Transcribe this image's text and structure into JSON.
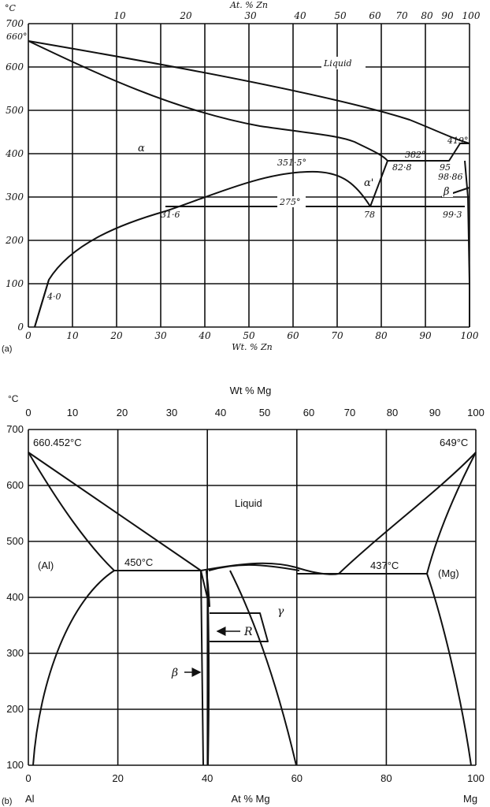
{
  "panel_a": {
    "label": "(a)",
    "y_unit": "°C",
    "top_axis_label": "At. % Zn",
    "bottom_axis_label": "Wt. % Zn",
    "y_ticks": [
      "0",
      "100",
      "200",
      "300",
      "400",
      "500",
      "600",
      "700"
    ],
    "top_ticks": [
      "10",
      "20",
      "30",
      "40",
      "50",
      "60",
      "70",
      "80",
      "90",
      "100"
    ],
    "bottom_ticks": [
      "0",
      "10",
      "20",
      "30",
      "40",
      "50",
      "60",
      "70",
      "80",
      "90",
      "100"
    ],
    "annotations": {
      "t660": "660°",
      "liquid": "Liquid",
      "alpha": "α",
      "alpha_prime": "α'",
      "beta": "β",
      "t419": "419°",
      "t382": "382°",
      "c828": "82·8",
      "c95": "95",
      "c9886": "98·86",
      "t3515": "351·5°",
      "t275": "275°",
      "c316": "31·6",
      "c78": "78",
      "c993": "99·3",
      "c40": "4·0"
    }
  },
  "panel_b": {
    "label": "(b)",
    "y_unit": "°C",
    "top_axis_label": "Wt % Mg",
    "bottom_axis_label": "At % Mg",
    "left_element": "Al",
    "right_element": "Mg",
    "y_ticks": [
      "100",
      "200",
      "300",
      "400",
      "500",
      "600",
      "700"
    ],
    "top_ticks": [
      "0",
      "10",
      "20",
      "30",
      "40",
      "50",
      "60",
      "70",
      "80",
      "90",
      "100"
    ],
    "bottom_ticks": [
      "0",
      "20",
      "40",
      "60",
      "80",
      "100"
    ],
    "annotations": {
      "t660452": "660.452°C",
      "t649": "649°C",
      "liquid": "Liquid",
      "al_phase": "(Al)",
      "t450": "450°C",
      "t437": "437°C",
      "mg_phase": "(Mg)",
      "gamma": "γ",
      "r_phase": "R",
      "beta": "β"
    }
  }
}
